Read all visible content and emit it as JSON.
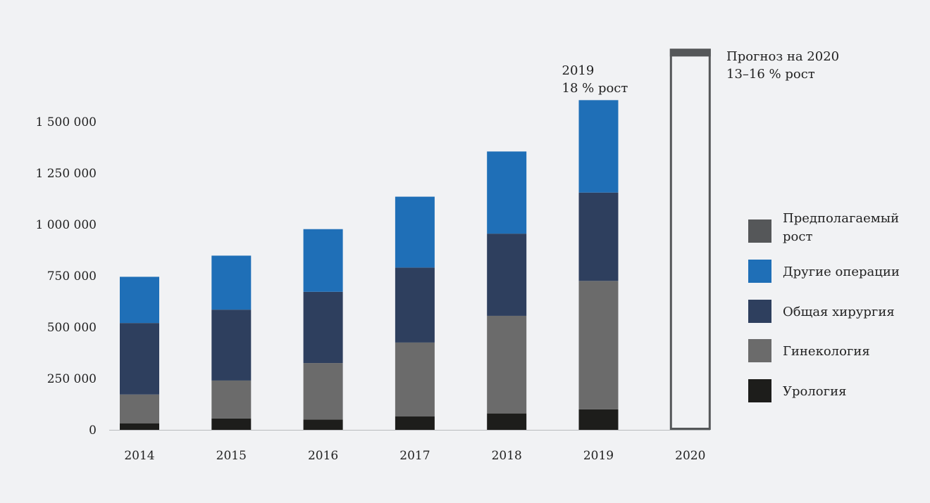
{
  "chart_data": {
    "type": "bar",
    "stacked": true,
    "categories": [
      "2014",
      "2015",
      "2016",
      "2017",
      "2018",
      "2019",
      "2020"
    ],
    "series": [
      {
        "name": "Урология",
        "color": "#1d1d1b",
        "values": [
          32000,
          55000,
          50000,
          65000,
          80000,
          100000,
          null
        ]
      },
      {
        "name": "Гинекология",
        "color": "#6b6b6b",
        "values": [
          140000,
          185000,
          275000,
          360000,
          475000,
          625000,
          null
        ]
      },
      {
        "name": "Общая хирургия",
        "color": "#2e3f5e",
        "values": [
          348000,
          345000,
          347000,
          365000,
          400000,
          430000,
          null
        ]
      },
      {
        "name": "Другие операции",
        "color": "#1f6fb7",
        "values": [
          225000,
          263000,
          305000,
          345000,
          400000,
          450000,
          null
        ]
      }
    ],
    "forecast": {
      "category": "2020",
      "name": "Предполагаемый рост",
      "color": "#555759",
      "value": 1850000,
      "label_line1": "Прогноз на 2020",
      "label_line2": "13–16 % рост"
    },
    "annotation": {
      "category": "2019",
      "line1": "2019",
      "line2": "18 % рост"
    },
    "yticks": [
      {
        "value": 0,
        "label": "0"
      },
      {
        "value": 250000,
        "label": "250 000"
      },
      {
        "value": 500000,
        "label": "500 000"
      },
      {
        "value": 750000,
        "label": "750 000"
      },
      {
        "value": 1000000,
        "label": "1 000 000"
      },
      {
        "value": 1250000,
        "label": "1 250 000"
      },
      {
        "value": 1500000,
        "label": "1 500 000"
      }
    ],
    "ylim": [
      0,
      1500000
    ],
    "legend": {
      "position": "right",
      "items": [
        {
          "label_lines": [
            "Предполагаемый",
            "рост"
          ],
          "color": "#555759"
        },
        {
          "label_lines": [
            "Другие операции"
          ],
          "color": "#1f6fb7"
        },
        {
          "label_lines": [
            "Общая хирургия"
          ],
          "color": "#2e3f5e"
        },
        {
          "label_lines": [
            "Гинекология"
          ],
          "color": "#6b6b6b"
        },
        {
          "label_lines": [
            "Урология"
          ],
          "color": "#1d1d1b"
        }
      ]
    },
    "title": "",
    "xlabel": "",
    "ylabel": "",
    "grid": false
  }
}
